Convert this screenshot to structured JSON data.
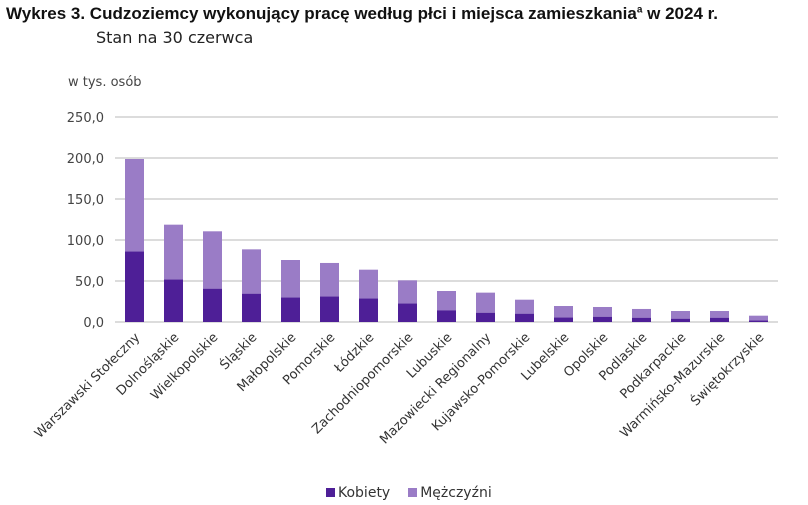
{
  "title": "Wykres 3. Cudzoziemcy wykonujący pracę według płci i miejsca zamieszkania",
  "title_sup": "a",
  "title_suffix": " w 2024 r.",
  "subtitle": "Stan na 30 czerwca",
  "chart_data": {
    "type": "bar",
    "stacked": true,
    "ylabel": "w tys. osób",
    "ylim": [
      0,
      250
    ],
    "yticks": [
      "0,0",
      "50,0",
      "100,0",
      "150,0",
      "200,0",
      "250,0"
    ],
    "grid": true,
    "legend_position": "bottom",
    "categories": [
      "Warszawski Stołeczny",
      "Dolnośląskie",
      "Wielkopolskie",
      "Śląskie",
      "Małopolskie",
      "Pomorskie",
      "Łódzkie",
      "Zachodniopomorskie",
      "Lubuskie",
      "Mazowiecki Regionalny",
      "Kujawsko-Pomorskie",
      "Lubelskie",
      "Opolskie",
      "Podlaskie",
      "Podkarpackie",
      "Warmińsko-Mazurskie",
      "Świętokrzyskie"
    ],
    "series": [
      {
        "name": "Kobiety",
        "color": "#4e1f97",
        "values": [
          86.2,
          52.0,
          40.7,
          34.6,
          30.1,
          31.3,
          28.9,
          22.8,
          14.4,
          11.4,
          10.2,
          5.7,
          6.5,
          5.3,
          4.1,
          5.3,
          2.0
        ]
      },
      {
        "name": "Mężczyźni",
        "color": "#9a7cc6",
        "values": [
          112.6,
          66.7,
          69.9,
          54.0,
          45.5,
          40.7,
          34.9,
          28.0,
          23.4,
          24.4,
          17.0,
          13.8,
          11.8,
          10.6,
          9.3,
          8.1,
          5.7
        ]
      }
    ]
  }
}
